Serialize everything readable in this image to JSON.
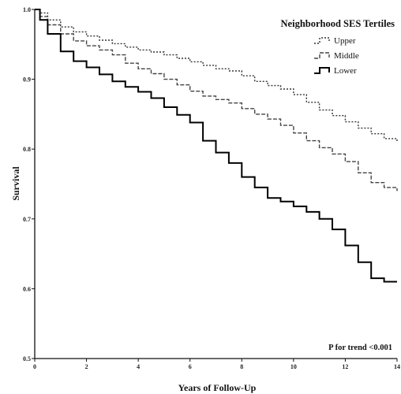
{
  "chart_data": {
    "type": "line",
    "xlabel": "Years of Follow-Up",
    "ylabel": "Survival",
    "xlim": [
      0,
      14
    ],
    "ylim": [
      0.5,
      1.0
    ],
    "xticks": [
      0,
      2,
      4,
      6,
      8,
      10,
      12,
      14
    ],
    "xtick_labels": [
      "0",
      "2",
      "4",
      "6",
      "8",
      "10",
      "12",
      "14"
    ],
    "yticks": [
      0.5,
      0.6,
      0.7,
      0.8,
      0.9,
      1.0
    ],
    "ytick_labels": [
      "0.5",
      "0.6",
      "0.7",
      "0.8",
      "0.9",
      "1.0"
    ],
    "step": true,
    "grid": false,
    "legend": {
      "title": "Neighborhood SES Tertiles",
      "placement": "top-right",
      "entries": [
        "Upper",
        "Middle",
        "Lower"
      ]
    },
    "annotation": "P for trend <0.001",
    "series": [
      {
        "name": "Upper",
        "style": "dotted",
        "x": [
          0,
          0.2,
          0.5,
          1,
          1.5,
          2,
          2.5,
          3,
          3.5,
          4,
          4.5,
          5,
          5.5,
          6,
          6.5,
          7,
          7.5,
          8,
          8.5,
          9,
          9.5,
          10,
          10.5,
          11,
          11.5,
          12,
          12.5,
          13,
          13.5,
          14
        ],
        "values": [
          1.0,
          0.995,
          0.985,
          0.975,
          0.968,
          0.962,
          0.956,
          0.951,
          0.946,
          0.942,
          0.939,
          0.935,
          0.93,
          0.925,
          0.92,
          0.915,
          0.912,
          0.905,
          0.897,
          0.891,
          0.886,
          0.878,
          0.867,
          0.856,
          0.848,
          0.839,
          0.83,
          0.822,
          0.815,
          0.81
        ]
      },
      {
        "name": "Middle",
        "style": "dashed",
        "x": [
          0,
          0.2,
          0.5,
          1,
          1.5,
          2,
          2.5,
          3,
          3.5,
          4,
          4.5,
          5,
          5.5,
          6,
          6.5,
          7,
          7.5,
          8,
          8.5,
          9,
          9.5,
          10,
          10.5,
          11,
          11.5,
          12,
          12.5,
          13,
          13.5,
          14
        ],
        "values": [
          1.0,
          0.99,
          0.978,
          0.965,
          0.955,
          0.948,
          0.942,
          0.935,
          0.923,
          0.915,
          0.908,
          0.9,
          0.892,
          0.883,
          0.876,
          0.871,
          0.866,
          0.858,
          0.85,
          0.843,
          0.834,
          0.823,
          0.812,
          0.802,
          0.793,
          0.782,
          0.766,
          0.752,
          0.745,
          0.74
        ]
      },
      {
        "name": "Lower",
        "style": "solid",
        "x": [
          0,
          0.2,
          0.5,
          1,
          1.5,
          2,
          2.5,
          3,
          3.5,
          4,
          4.5,
          5,
          5.5,
          6,
          6.5,
          7,
          7.5,
          8,
          8.5,
          9,
          9.5,
          10,
          10.5,
          11,
          11.5,
          12,
          12.5,
          13,
          13.5,
          14
        ],
        "values": [
          1.0,
          0.985,
          0.965,
          0.94,
          0.926,
          0.917,
          0.907,
          0.897,
          0.889,
          0.882,
          0.873,
          0.86,
          0.849,
          0.838,
          0.812,
          0.795,
          0.78,
          0.76,
          0.745,
          0.73,
          0.725,
          0.718,
          0.71,
          0.7,
          0.685,
          0.662,
          0.638,
          0.615,
          0.61,
          0.61
        ]
      }
    ]
  }
}
